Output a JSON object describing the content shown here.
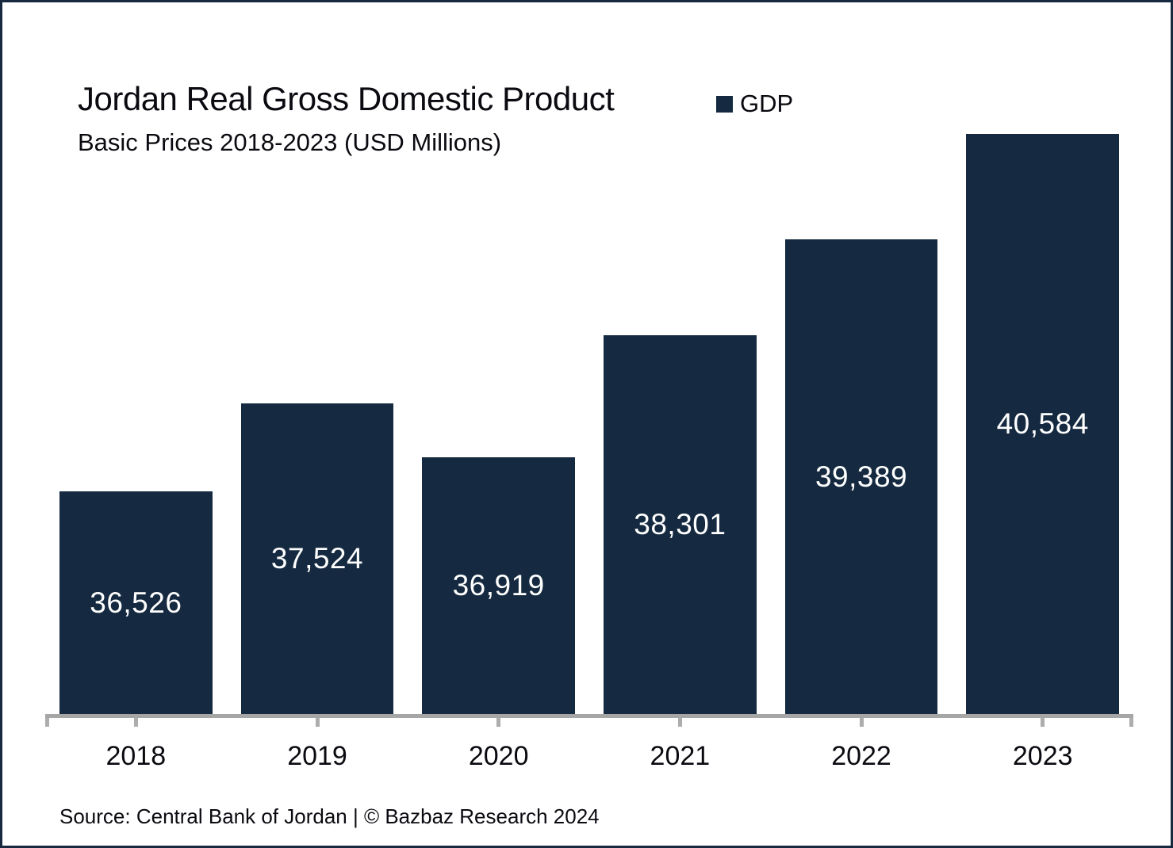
{
  "header": {
    "title": "Jordan Real Gross Domestic Product",
    "subtitle": "Basic Prices 2018-2023 (USD Millions)"
  },
  "legend": {
    "label": "GDP",
    "swatch_color": "#152A40"
  },
  "footer": {
    "source": "Source: Central Bank of Jordan | © Bazbaz Research 2024"
  },
  "colors": {
    "bar": "#152A40",
    "axis_line": "#A6A6A6",
    "tick": "#ADADAD",
    "value_label": "#FFFFFF",
    "border": "#16293E",
    "background": "#FFFFFF",
    "text": "#0A0A10"
  },
  "chart_data": {
    "type": "bar",
    "title": "Jordan Real Gross Domestic Product",
    "subtitle": "Basic Prices 2018-2023 (USD Millions)",
    "categories": [
      "2018",
      "2019",
      "2020",
      "2021",
      "2022",
      "2023"
    ],
    "series": [
      {
        "name": "GDP",
        "values": [
          36526,
          37524,
          36919,
          38301,
          39389,
          40584
        ]
      }
    ],
    "value_labels": [
      "36,526",
      "37,524",
      "36,919",
      "38,301",
      "39,389",
      "40,584"
    ],
    "xlabel": "",
    "ylabel": "",
    "ylim": [
      34000,
      41000
    ],
    "grid": false,
    "y_axis_visible": false,
    "legend_position": "top",
    "value_label_position": "center-of-bar",
    "source": "Source: Central Bank of Jordan | © Bazbaz Research 2024"
  }
}
